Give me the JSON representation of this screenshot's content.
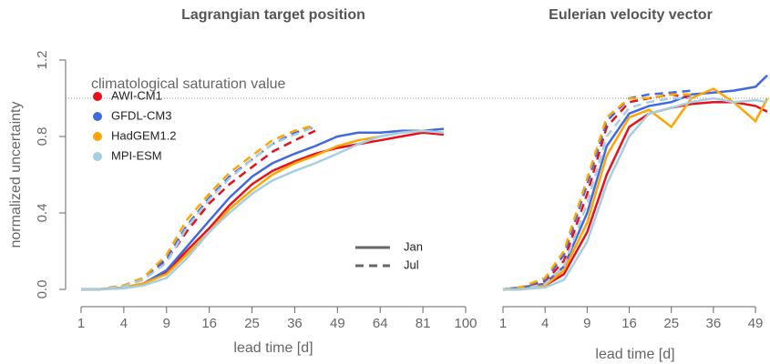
{
  "chart_data": [
    {
      "type": "line",
      "title": "Lagrangian target position",
      "xlabel": "lead time [d]",
      "ylabel": "normalized uncertainty",
      "xscale": "sqrt",
      "xlim": [
        1,
        100
      ],
      "xticks": [
        1,
        4,
        9,
        16,
        25,
        36,
        49,
        64,
        81,
        100
      ],
      "ylim": [
        0,
        1.2
      ],
      "yticks": [
        {
          "value": 0,
          "label": "0.0"
        },
        {
          "value": 0.4,
          "label": "0.4"
        },
        {
          "value": 0.8,
          "label": "0.8"
        },
        {
          "value": 1.2,
          "label": "1.2"
        }
      ],
      "hline": {
        "value": 1,
        "label": "climatological saturation value"
      },
      "linestyle_legend": [
        {
          "label": "Jan",
          "dash": "solid"
        },
        {
          "label": "Jul",
          "dash": "dashed"
        }
      ],
      "x": [
        1,
        2,
        4,
        6,
        9,
        12,
        16,
        20,
        25,
        30,
        36,
        42,
        49,
        56,
        64,
        72,
        81,
        90
      ],
      "series": [
        {
          "name": "AWI-CM1",
          "color": "#e8101a",
          "dash": "solid",
          "values": [
            0,
            0,
            0.01,
            0.03,
            0.09,
            0.2,
            0.32,
            0.44,
            0.55,
            0.62,
            0.67,
            0.71,
            0.74,
            0.76,
            0.78,
            0.8,
            0.82,
            0.81
          ]
        },
        {
          "name": "GFDL-CM3",
          "color": "#4169e1",
          "dash": "solid",
          "values": [
            0,
            0,
            0.01,
            0.03,
            0.1,
            0.22,
            0.36,
            0.48,
            0.59,
            0.66,
            0.71,
            0.75,
            0.8,
            0.82,
            0.82,
            0.83,
            0.83,
            0.84
          ]
        },
        {
          "name": "HadGEM1.2",
          "color": "#ffa500",
          "dash": "solid",
          "values": [
            0,
            0,
            0.01,
            0.03,
            0.08,
            0.18,
            0.3,
            0.42,
            0.52,
            0.6,
            0.66,
            0.7,
            0.75,
            0.78,
            0.8,
            0.82,
            0.83,
            0.82
          ]
        },
        {
          "name": "MPI-ESM",
          "color": "#a6cee3",
          "dash": "solid",
          "values": [
            0,
            0,
            0.005,
            0.02,
            0.06,
            0.16,
            0.3,
            0.4,
            0.5,
            0.57,
            0.62,
            0.66,
            0.71,
            0.76,
            0.8,
            0.82,
            0.83,
            0.82
          ]
        },
        {
          "name": "AWI-CM1",
          "color": "#e8101a",
          "dash": "dashed",
          "values": [
            0,
            0,
            0.02,
            0.05,
            0.15,
            0.3,
            0.45,
            0.55,
            0.64,
            0.72,
            0.78,
            0.83,
            null,
            null,
            null,
            null,
            null,
            null
          ]
        },
        {
          "name": "GFDL-CM3",
          "color": "#4169e1",
          "dash": "dashed",
          "values": [
            0,
            0,
            0.02,
            0.06,
            0.16,
            0.33,
            0.48,
            0.59,
            0.68,
            0.76,
            0.82,
            0.85,
            null,
            null,
            null,
            null,
            null,
            null
          ]
        },
        {
          "name": "HadGEM1.2",
          "color": "#ffa500",
          "dash": "dashed",
          "values": [
            0,
            0,
            0.02,
            0.06,
            0.18,
            0.36,
            0.5,
            0.61,
            0.7,
            0.78,
            0.83,
            0.86,
            null,
            null,
            null,
            null,
            null,
            null
          ]
        },
        {
          "name": "MPI-ESM",
          "color": "#a6cee3",
          "dash": "dashed",
          "values": [
            0,
            0,
            0.015,
            0.05,
            0.14,
            0.32,
            0.47,
            0.58,
            0.68,
            0.76,
            0.81,
            0.85,
            null,
            null,
            null,
            null,
            null,
            null
          ]
        }
      ]
    },
    {
      "type": "line",
      "title": "Eulerian velocity vector",
      "xlabel": "lead time [d]",
      "xscale": "sqrt",
      "xlim": [
        1,
        53
      ],
      "xticks": [
        1,
        4,
        9,
        16,
        25,
        36,
        49
      ],
      "ylim": [
        0,
        1.2
      ],
      "hline": {
        "value": 1
      },
      "x": [
        1,
        2,
        4,
        6,
        9,
        12,
        16,
        20,
        25,
        30,
        36,
        42,
        49,
        53
      ],
      "series": [
        {
          "name": "AWI-CM1",
          "color": "#e8101a",
          "dash": "solid",
          "values": [
            0,
            0,
            0.02,
            0.08,
            0.3,
            0.6,
            0.85,
            0.92,
            0.95,
            0.97,
            0.98,
            0.98,
            0.96,
            0.93
          ]
        },
        {
          "name": "GFDL-CM3",
          "color": "#4169e1",
          "dash": "solid",
          "values": [
            0,
            0.01,
            0.03,
            0.12,
            0.4,
            0.75,
            0.92,
            0.96,
            0.98,
            1.02,
            1.03,
            1.04,
            1.06,
            1.12
          ]
        },
        {
          "name": "HadGEM1.2",
          "color": "#ffa500",
          "dash": "solid",
          "values": [
            0,
            0,
            0.02,
            0.1,
            0.35,
            0.7,
            0.9,
            0.94,
            0.85,
            1.0,
            1.05,
            0.98,
            0.88,
            1.0
          ]
        },
        {
          "name": "MPI-ESM",
          "color": "#a6cee3",
          "dash": "solid",
          "values": [
            0,
            0,
            0.01,
            0.05,
            0.25,
            0.55,
            0.8,
            0.92,
            0.95,
            0.98,
            1.0,
            0.98,
            0.99,
            0.98
          ]
        },
        {
          "name": "AWI-CM1",
          "color": "#e8101a",
          "dash": "dashed",
          "values": [
            0,
            0.01,
            0.04,
            0.15,
            0.5,
            0.85,
            0.98,
            1.0,
            1.02,
            1.0,
            null,
            null,
            null,
            null
          ]
        },
        {
          "name": "GFDL-CM3",
          "color": "#4169e1",
          "dash": "dashed",
          "values": [
            0,
            0.01,
            0.05,
            0.18,
            0.55,
            0.88,
            1.0,
            1.02,
            1.03,
            1.04,
            null,
            null,
            null,
            null
          ]
        },
        {
          "name": "HadGEM1.2",
          "color": "#ffa500",
          "dash": "dashed",
          "values": [
            0,
            0.01,
            0.06,
            0.2,
            0.58,
            0.9,
            1.0,
            1.0,
            1.02,
            1.02,
            null,
            null,
            null,
            null
          ]
        },
        {
          "name": "MPI-ESM",
          "color": "#a6cee3",
          "dash": "dashed",
          "values": [
            0,
            0,
            0.03,
            0.12,
            0.45,
            0.8,
            0.95,
            0.98,
            1.0,
            1.0,
            null,
            null,
            null,
            null
          ]
        }
      ]
    }
  ]
}
